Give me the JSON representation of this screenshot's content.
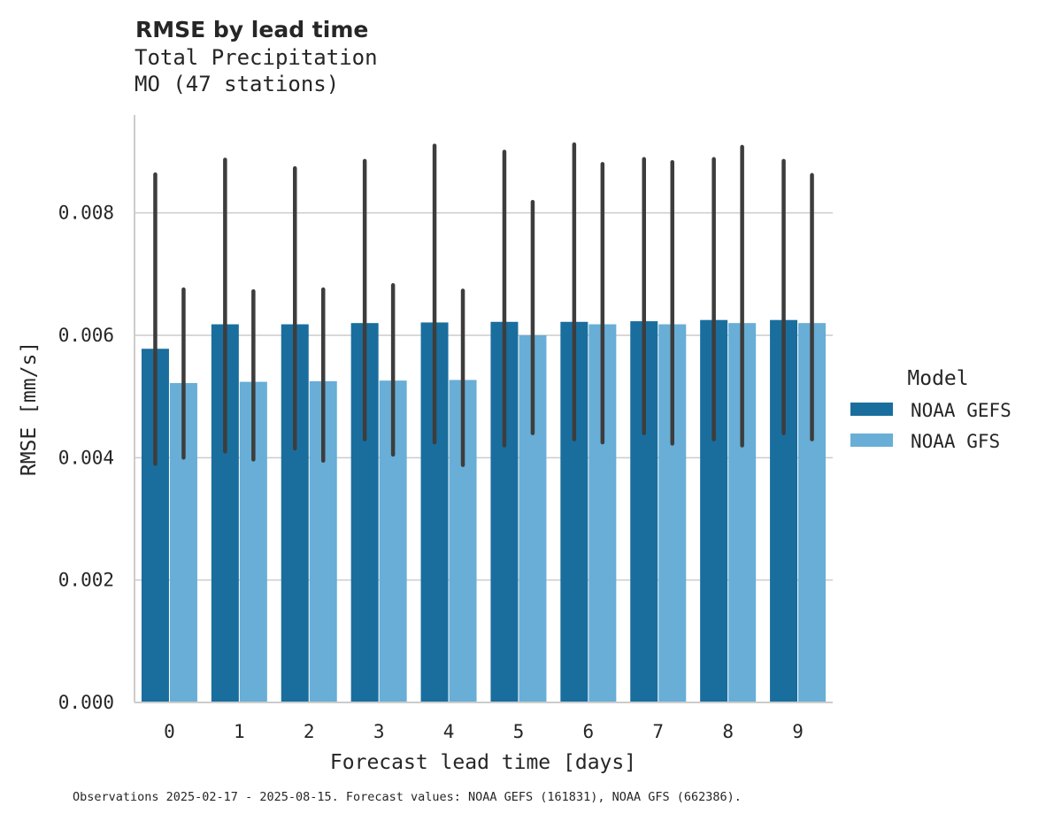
{
  "chart_data": {
    "type": "bar",
    "title": "RMSE by lead time",
    "subtitle_lines": [
      "Total Precipitation",
      "MO (47 stations)"
    ],
    "xlabel": "Forecast lead time [days]",
    "ylabel": "RMSE [mm/s]",
    "ylim": [
      0,
      0.0096
    ],
    "yticks": [
      0,
      0.002,
      0.004,
      0.006,
      0.008
    ],
    "ytick_labels": [
      "0.000",
      "0.002",
      "0.004",
      "0.006",
      "0.008"
    ],
    "grid": "horizontal",
    "categories": [
      "0",
      "1",
      "2",
      "3",
      "4",
      "5",
      "6",
      "7",
      "8",
      "9"
    ],
    "legend": {
      "title": "Model",
      "placement": "right"
    },
    "series": [
      {
        "name": "NOAA GEFS",
        "color": "#1a6e9e",
        "values": [
          0.00578,
          0.00618,
          0.00618,
          0.0062,
          0.00621,
          0.00622,
          0.00622,
          0.00623,
          0.00625,
          0.00625
        ],
        "err_low": [
          0.0039,
          0.0041,
          0.00415,
          0.0043,
          0.00425,
          0.0042,
          0.0043,
          0.0044,
          0.0043,
          0.0044
        ],
        "err_high": [
          0.00863,
          0.00887,
          0.00873,
          0.00885,
          0.0091,
          0.009,
          0.00912,
          0.00888,
          0.00888,
          0.00885
        ]
      },
      {
        "name": "NOAA GFS",
        "color": "#68aed6",
        "values": [
          0.00522,
          0.00524,
          0.00525,
          0.00526,
          0.00527,
          0.006,
          0.00618,
          0.00618,
          0.0062,
          0.0062
        ],
        "err_low": [
          0.004,
          0.00397,
          0.00395,
          0.00405,
          0.00388,
          0.0044,
          0.00425,
          0.00423,
          0.0042,
          0.0043
        ],
        "err_high": [
          0.00675,
          0.00672,
          0.00675,
          0.00682,
          0.00673,
          0.00818,
          0.0088,
          0.00883,
          0.00908,
          0.00862
        ]
      }
    ],
    "error_bar_color": "#3d3d3d",
    "footnote": "Observations 2025-02-17 - 2025-08-15. Forecast values: NOAA GEFS (161831), NOAA GFS (662386)."
  }
}
